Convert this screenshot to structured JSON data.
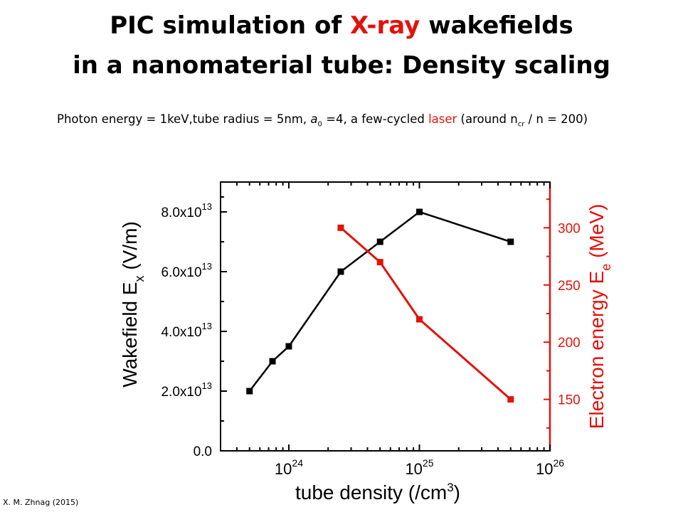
{
  "slide": {
    "title_line1_pre": "PIC simulation of ",
    "title_line1_accent": "X-ray",
    "title_line1_post": " wakefields",
    "title_line2": "in a nanomaterial tube: Density scaling",
    "subtitle": {
      "part1": "Photon energy = 1keV,tube radius = 5nm, ",
      "a_symbol": "a",
      "a_sub": "0",
      "part2": " =4,  a few-cycled ",
      "laser": "laser",
      "part3": "  (around n",
      "ncr_sub": "cr",
      "part4": "  / n = 200)"
    },
    "credit": "X. M. Zhnag (2015)",
    "colors": {
      "accent": "#e3120b",
      "black": "#000000"
    }
  },
  "chart_data": {
    "type": "line",
    "xlabel": "tube density (/cm",
    "xlabel_sup": "3",
    "xlabel_end": ")",
    "xscale": "log",
    "xlim": [
      3e+23,
      1e+26
    ],
    "xticks": [
      {
        "value": 1e+24,
        "base": "10",
        "exp": "24"
      },
      {
        "value": 1e+25,
        "base": "10",
        "exp": "25"
      },
      {
        "value": 1e+26,
        "base": "10",
        "exp": "26"
      }
    ],
    "left_axis": {
      "label_pre": "Wakefield E",
      "label_sub": "x",
      "label_post": " (V/m)",
      "ylim": [
        0,
        90000000000000.0
      ],
      "ticks": [
        {
          "value": 0,
          "text": "0.0"
        },
        {
          "value": 20000000000000.0,
          "text": "2.0x10",
          "exp": "13"
        },
        {
          "value": 40000000000000.0,
          "text": "4.0x10",
          "exp": "13"
        },
        {
          "value": 60000000000000.0,
          "text": "6.0x10",
          "exp": "13"
        },
        {
          "value": 80000000000000.0,
          "text": "8.0x10",
          "exp": "13"
        }
      ]
    },
    "right_axis": {
      "label_pre": "Electron energy E",
      "label_sub": "e",
      "label_post": " (MeV)",
      "ylim": [
        105,
        340
      ],
      "ticks": [
        150,
        200,
        250,
        300
      ]
    },
    "series": [
      {
        "axis": "left",
        "color": "#000000",
        "x": [
          5e+23,
          7.5e+23,
          1e+24,
          2.5e+24,
          5e+24,
          1e+25,
          5e+25
        ],
        "y": [
          20000000000000.0,
          30000000000000.0,
          35000000000000.0,
          60000000000000.0,
          70000000000000.0,
          80000000000000.0,
          70000000000000.0
        ]
      },
      {
        "axis": "right",
        "color": "#e3120b",
        "x": [
          2.5e+24,
          5e+24,
          1e+25,
          5e+25
        ],
        "y": [
          300,
          270,
          220,
          150
        ]
      }
    ]
  }
}
